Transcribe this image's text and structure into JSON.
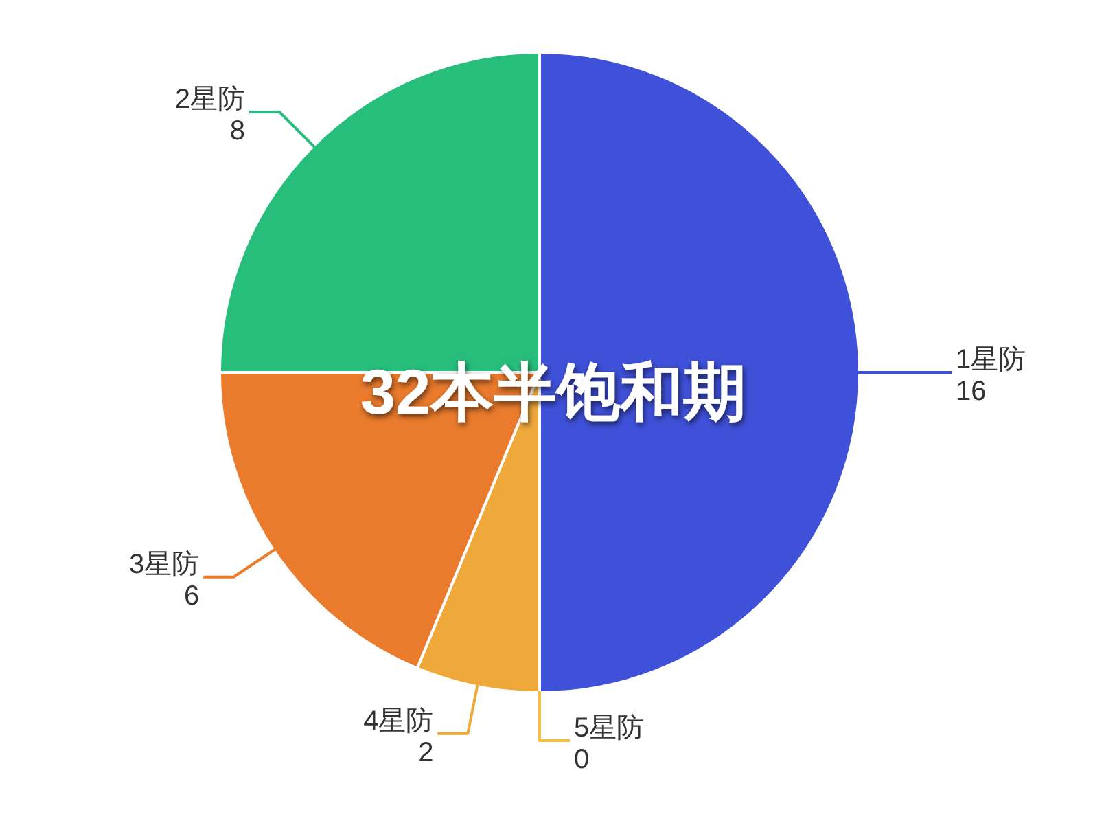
{
  "chart_data": {
    "type": "pie",
    "title": "32本半饱和期",
    "categories": [
      "1星防",
      "5星防",
      "4星防",
      "3星防",
      "2星防"
    ],
    "values": [
      16,
      0,
      2,
      6,
      8
    ],
    "colors": [
      "#3f51d9",
      "#f5c040",
      "#efa93b",
      "#ea7b2d",
      "#27bd7b"
    ],
    "value_labels": [
      "16",
      "0",
      "2",
      "6",
      "8"
    ]
  }
}
